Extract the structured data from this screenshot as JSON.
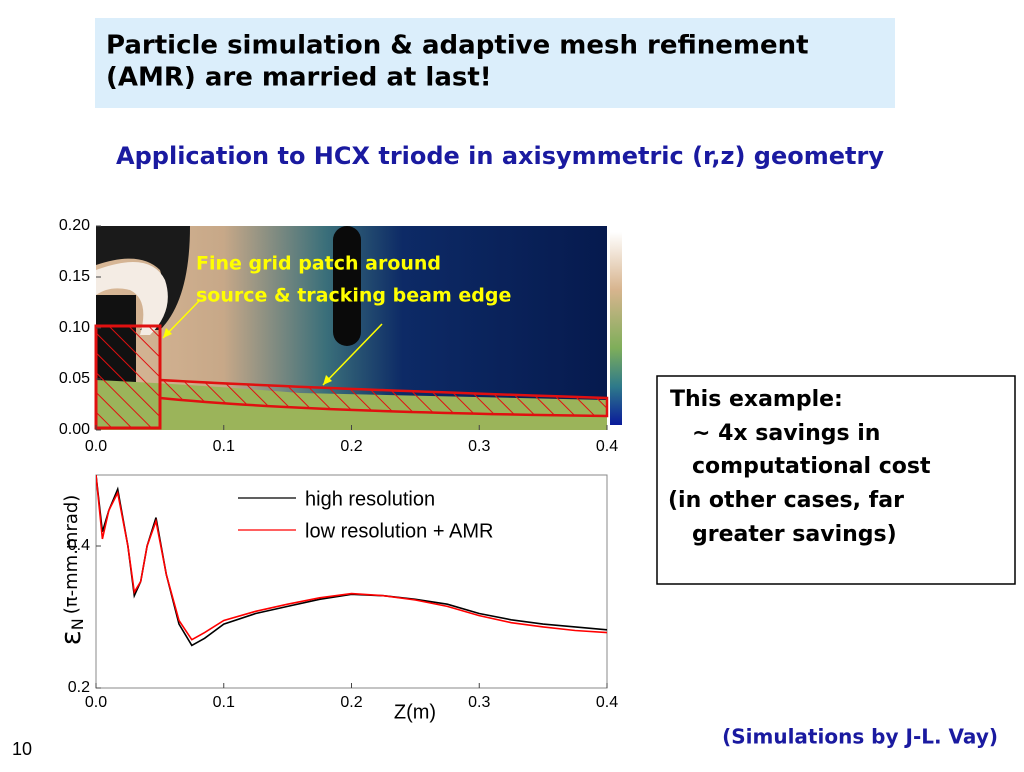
{
  "slide": {
    "title_lines": [
      "Particle simulation & adaptive mesh refinement",
      "(AMR) are married at last!"
    ],
    "subtitle": "Application to HCX triode in axisymmetric (r,z) geometry",
    "note_lines": [
      "This example:",
      "~ 4x savings in",
      "computational cost",
      "(in other cases, far",
      "greater savings)"
    ],
    "credit": "(Simulations by J-L. Vay)",
    "page_number": "10"
  },
  "chart_data": [
    {
      "type": "field-map",
      "annotation_lines": [
        "Fine grid patch around",
        "source & tracking beam edge"
      ],
      "xlim": [
        0,
        0.4
      ],
      "ylim": [
        0,
        0.2
      ],
      "xticks": [
        {
          "value": 0,
          "label": "0.0"
        },
        0.1,
        0.2,
        0.3,
        0.4
      ],
      "yticks": [
        {
          "value": 0,
          "label": "0.00"
        },
        0.05,
        {
          "value": 0.1,
          "label": "0.10"
        },
        0.15,
        {
          "value": 0.2,
          "label": "0.20"
        }
      ]
    },
    {
      "type": "line",
      "x_label": "Z(m)",
      "y_label": {
        "symbol": "ε",
        "subscript": "N",
        "unit": "(π-mm.mrad)"
      },
      "xlim": [
        0,
        0.4
      ],
      "ylim": [
        0.2,
        0.5
      ],
      "xticks": [
        {
          "value": 0,
          "label": "0.0"
        },
        0.1,
        0.2,
        0.3,
        0.4
      ],
      "yticks": [
        0.2,
        0.4
      ],
      "x": [
        0,
        0.005,
        0.01,
        0.017,
        0.025,
        0.03,
        0.035,
        0.04,
        0.047,
        0.055,
        0.065,
        0.075,
        0.085,
        0.1,
        0.125,
        0.15,
        0.175,
        0.2,
        0.225,
        0.25,
        0.275,
        0.3,
        0.325,
        0.35,
        0.375,
        0.4
      ],
      "series": [
        {
          "name": "high resolution",
          "color": "#000000",
          "values": [
            0.5,
            0.42,
            0.45,
            0.48,
            0.4,
            0.33,
            0.35,
            0.4,
            0.44,
            0.36,
            0.29,
            0.26,
            0.27,
            0.29,
            0.305,
            0.315,
            0.325,
            0.332,
            0.33,
            0.325,
            0.318,
            0.305,
            0.296,
            0.29,
            0.286,
            0.282
          ]
        },
        {
          "name": "low resolution + AMR",
          "color": "#ff0000",
          "values": [
            0.5,
            0.41,
            0.45,
            0.475,
            0.4,
            0.335,
            0.35,
            0.4,
            0.435,
            0.36,
            0.295,
            0.268,
            0.278,
            0.295,
            0.308,
            0.318,
            0.327,
            0.333,
            0.33,
            0.324,
            0.315,
            0.302,
            0.292,
            0.286,
            0.281,
            0.278
          ]
        }
      ]
    }
  ]
}
